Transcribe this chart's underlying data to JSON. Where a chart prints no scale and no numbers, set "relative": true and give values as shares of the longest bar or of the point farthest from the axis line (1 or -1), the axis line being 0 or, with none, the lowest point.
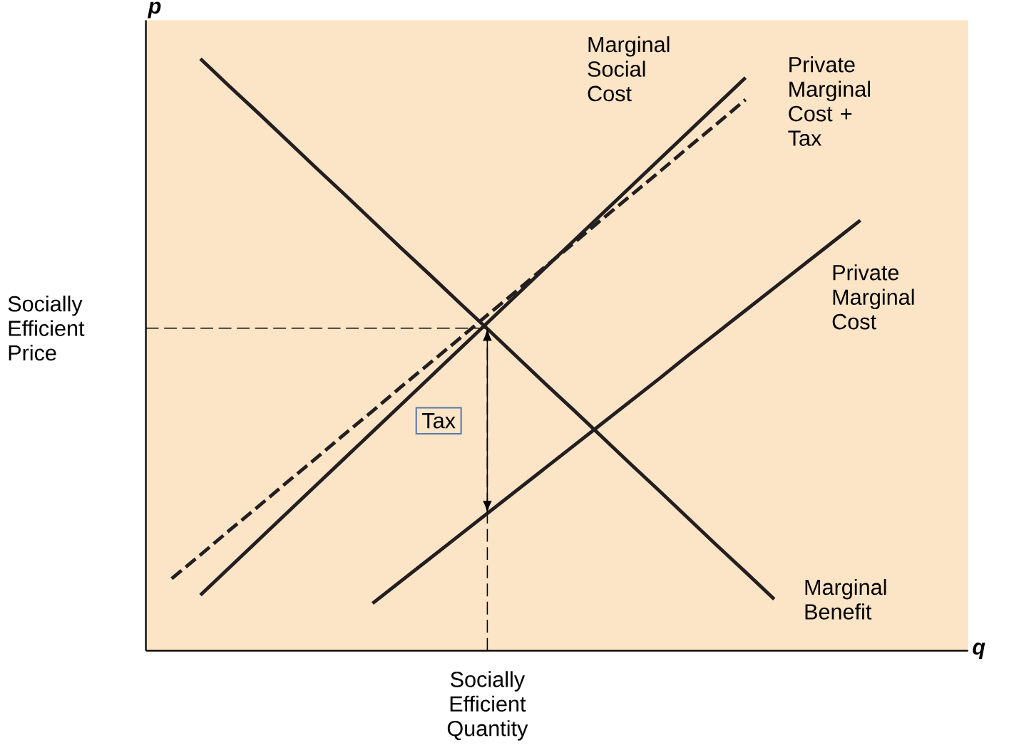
{
  "chart_data": {
    "type": "line",
    "relative": true,
    "xlabel": "q",
    "ylabel": "p",
    "categories": [
      null,
      null,
      null,
      null,
      null,
      null,
      null,
      null,
      null,
      null,
      null,
      null,
      null,
      null,
      null,
      null,
      null,
      null,
      null,
      null,
      null,
      null,
      null,
      null,
      null,
      null,
      null,
      null
    ],
    "series": [
      {
        "name": "Marginal Benefit",
        "color": "#231f20",
        "values": [
          null,
          1,
          0.954,
          0.909,
          0.863,
          0.817,
          0.772,
          0.726,
          0.68,
          0.635,
          0.589,
          0.544,
          0.498,
          0.452,
          0.407,
          0.361,
          0.315,
          0.27,
          0.224,
          0.178,
          0.133,
          0.087,
          null,
          null,
          null,
          null,
          null,
          null
        ]
      },
      {
        "name": "Marginal Social Cost",
        "color": "#231f20",
        "values": [
          null,
          0.094,
          0.14,
          0.186,
          0.232,
          0.278,
          0.324,
          0.37,
          0.416,
          0.462,
          0.508,
          0.554,
          0.6,
          0.646,
          0.692,
          0.738,
          0.784,
          0.83,
          0.876,
          0.922,
          0.968,
          null,
          null,
          null,
          null,
          null,
          null,
          null
        ]
      },
      {
        "name": "Private Marginal Cost + Tax",
        "color": "#231f20",
        "line_style": "dashed",
        "values": [
          0.122,
          0.162,
          0.203,
          0.243,
          0.284,
          0.324,
          0.365,
          0.405,
          0.446,
          0.486,
          0.526,
          0.567,
          0.607,
          0.648,
          0.688,
          0.729,
          0.769,
          0.809,
          0.85,
          0.89,
          0.931,
          null,
          null,
          null,
          null,
          null,
          null,
          null
        ]
      },
      {
        "name": "Private Marginal Cost",
        "color": "#231f20",
        "values": [
          null,
          null,
          null,
          null,
          null,
          null,
          null,
          0.08,
          0.118,
          0.156,
          0.194,
          0.232,
          0.27,
          0.308,
          0.346,
          0.384,
          0.422,
          0.46,
          0.499,
          0.537,
          0.575,
          0.613,
          0.651,
          0.689,
          0.727,
          null,
          null,
          null
        ]
      }
    ],
    "ref_lines": [
      {
        "axis": "y",
        "value": 0.545,
        "label": "Socially Efficient Price",
        "line_style": "dashed"
      }
    ],
    "annotations": [
      "Socially Efficient Quantity",
      "Tax"
    ]
  }
}
